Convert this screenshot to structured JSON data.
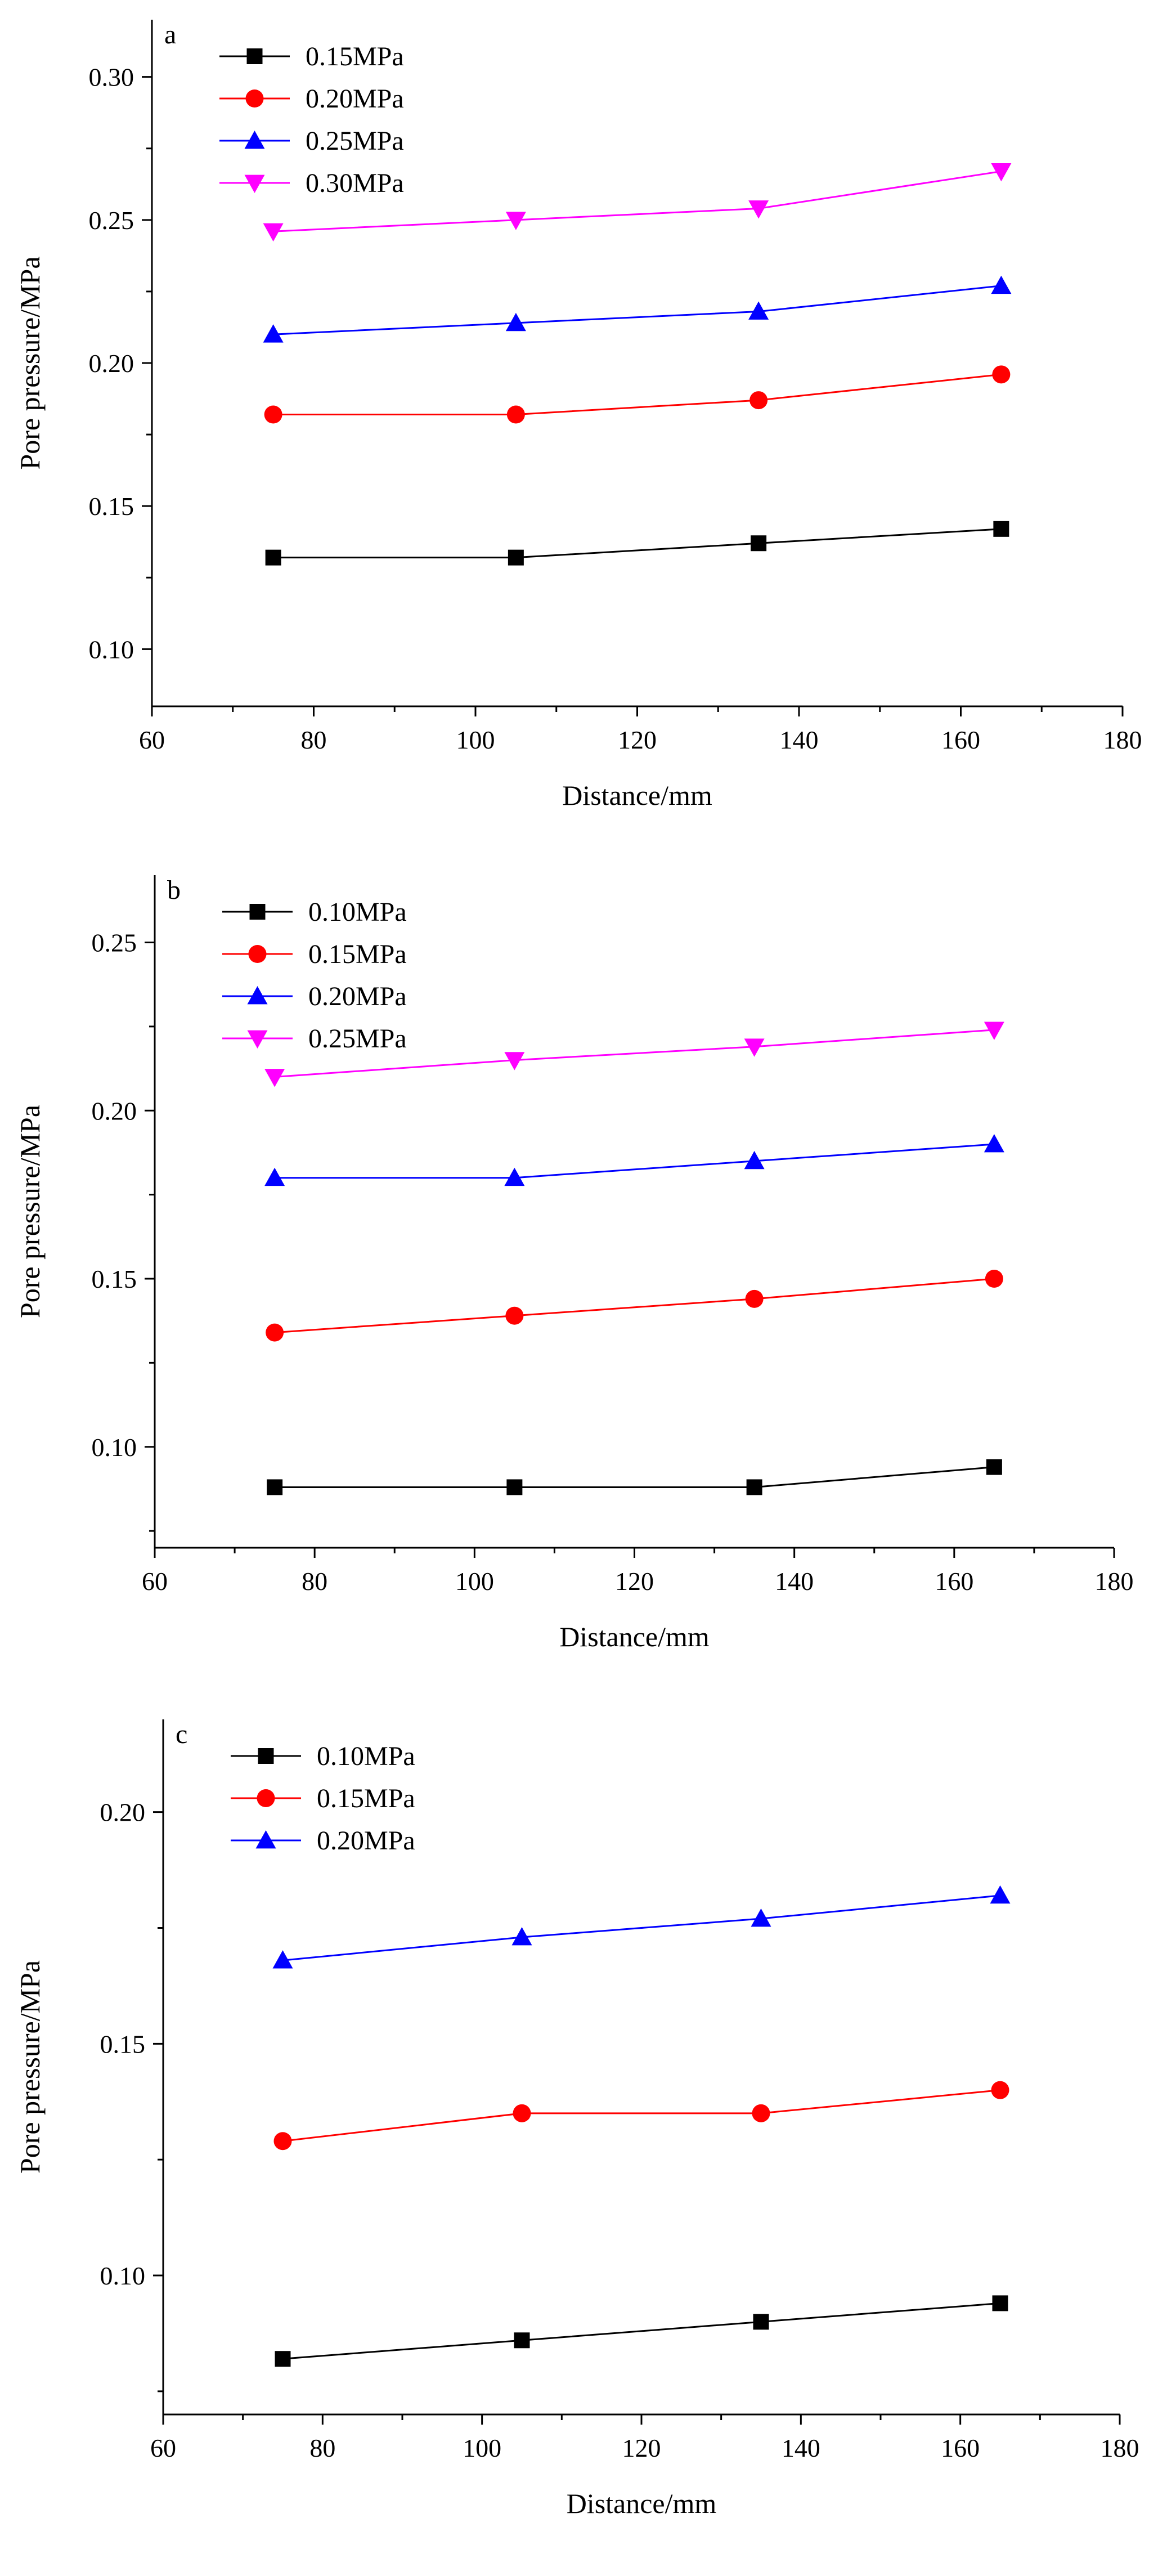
{
  "chart_data": [
    {
      "type": "line",
      "panel": "a",
      "xlabel": "Distance/mm",
      "ylabel": "Pore pressure/MPa",
      "xlim": [
        60,
        180
      ],
      "ylim": [
        0.08,
        0.32
      ],
      "xticks": [
        60,
        80,
        100,
        120,
        140,
        160,
        180
      ],
      "xtick_labels": [
        "60",
        "80",
        "100",
        "120",
        "140",
        "160",
        "180"
      ],
      "yticks": [
        0.1,
        0.15,
        0.2,
        0.25,
        0.3
      ],
      "ytick_labels": [
        "0.10",
        "0.15",
        "0.20",
        "0.25",
        "0.30"
      ],
      "legend_position": "top-left",
      "x": [
        75,
        105,
        135,
        165
      ],
      "series": [
        {
          "name": "0.15MPa",
          "color": "#000000",
          "marker": "square",
          "values": [
            0.132,
            0.132,
            0.137,
            0.142
          ]
        },
        {
          "name": "0.20MPa",
          "color": "#ff0000",
          "marker": "circle",
          "values": [
            0.182,
            0.182,
            0.187,
            0.196
          ]
        },
        {
          "name": "0.25MPa",
          "color": "#0000ff",
          "marker": "triangle-up",
          "values": [
            0.21,
            0.214,
            0.218,
            0.227
          ]
        },
        {
          "name": "0.30MPa",
          "color": "#ff00ff",
          "marker": "triangle-down",
          "values": [
            0.246,
            0.25,
            0.254,
            0.267
          ]
        }
      ]
    },
    {
      "type": "line",
      "panel": "b",
      "xlabel": "Distance/mm",
      "ylabel": "Pore pressure/MPa",
      "xlim": [
        60,
        180
      ],
      "ylim": [
        0.07,
        0.27
      ],
      "xticks": [
        60,
        80,
        100,
        120,
        140,
        160,
        180
      ],
      "xtick_labels": [
        "60",
        "80",
        "100",
        "120",
        "140",
        "160",
        "180"
      ],
      "yticks": [
        0.1,
        0.15,
        0.2,
        0.25
      ],
      "ytick_labels": [
        "0.10",
        "0.15",
        "0.20",
        "0.25"
      ],
      "legend_position": "top-left",
      "x": [
        75,
        105,
        135,
        165
      ],
      "series": [
        {
          "name": "0.10MPa",
          "color": "#000000",
          "marker": "square",
          "values": [
            0.088,
            0.088,
            0.088,
            0.094
          ]
        },
        {
          "name": "0.15MPa",
          "color": "#ff0000",
          "marker": "circle",
          "values": [
            0.134,
            0.139,
            0.144,
            0.15
          ]
        },
        {
          "name": "0.20MPa",
          "color": "#0000ff",
          "marker": "triangle-up",
          "values": [
            0.18,
            0.18,
            0.185,
            0.19
          ]
        },
        {
          "name": "0.25MPa",
          "color": "#ff00ff",
          "marker": "triangle-down",
          "values": [
            0.21,
            0.215,
            0.219,
            0.224
          ]
        }
      ]
    },
    {
      "type": "line",
      "panel": "c",
      "xlabel": "Distance/mm",
      "ylabel": "Pore pressure/MPa",
      "xlim": [
        60,
        180
      ],
      "ylim": [
        0.07,
        0.22
      ],
      "xticks": [
        60,
        80,
        100,
        120,
        140,
        160,
        180
      ],
      "xtick_labels": [
        "60",
        "80",
        "100",
        "120",
        "140",
        "160",
        "180"
      ],
      "yticks": [
        0.1,
        0.15,
        0.2
      ],
      "ytick_labels": [
        "0.10",
        "0.15",
        "0.20"
      ],
      "legend_position": "top-left",
      "x": [
        75,
        105,
        135,
        165
      ],
      "series": [
        {
          "name": "0.10MPa",
          "color": "#000000",
          "marker": "square",
          "values": [
            0.082,
            0.086,
            0.09,
            0.094
          ]
        },
        {
          "name": "0.15MPa",
          "color": "#ff0000",
          "marker": "circle",
          "values": [
            0.129,
            0.135,
            0.135,
            0.14
          ]
        },
        {
          "name": "0.20MPa",
          "color": "#0000ff",
          "marker": "triangle-up",
          "values": [
            0.168,
            0.173,
            0.177,
            0.182
          ]
        }
      ]
    }
  ]
}
